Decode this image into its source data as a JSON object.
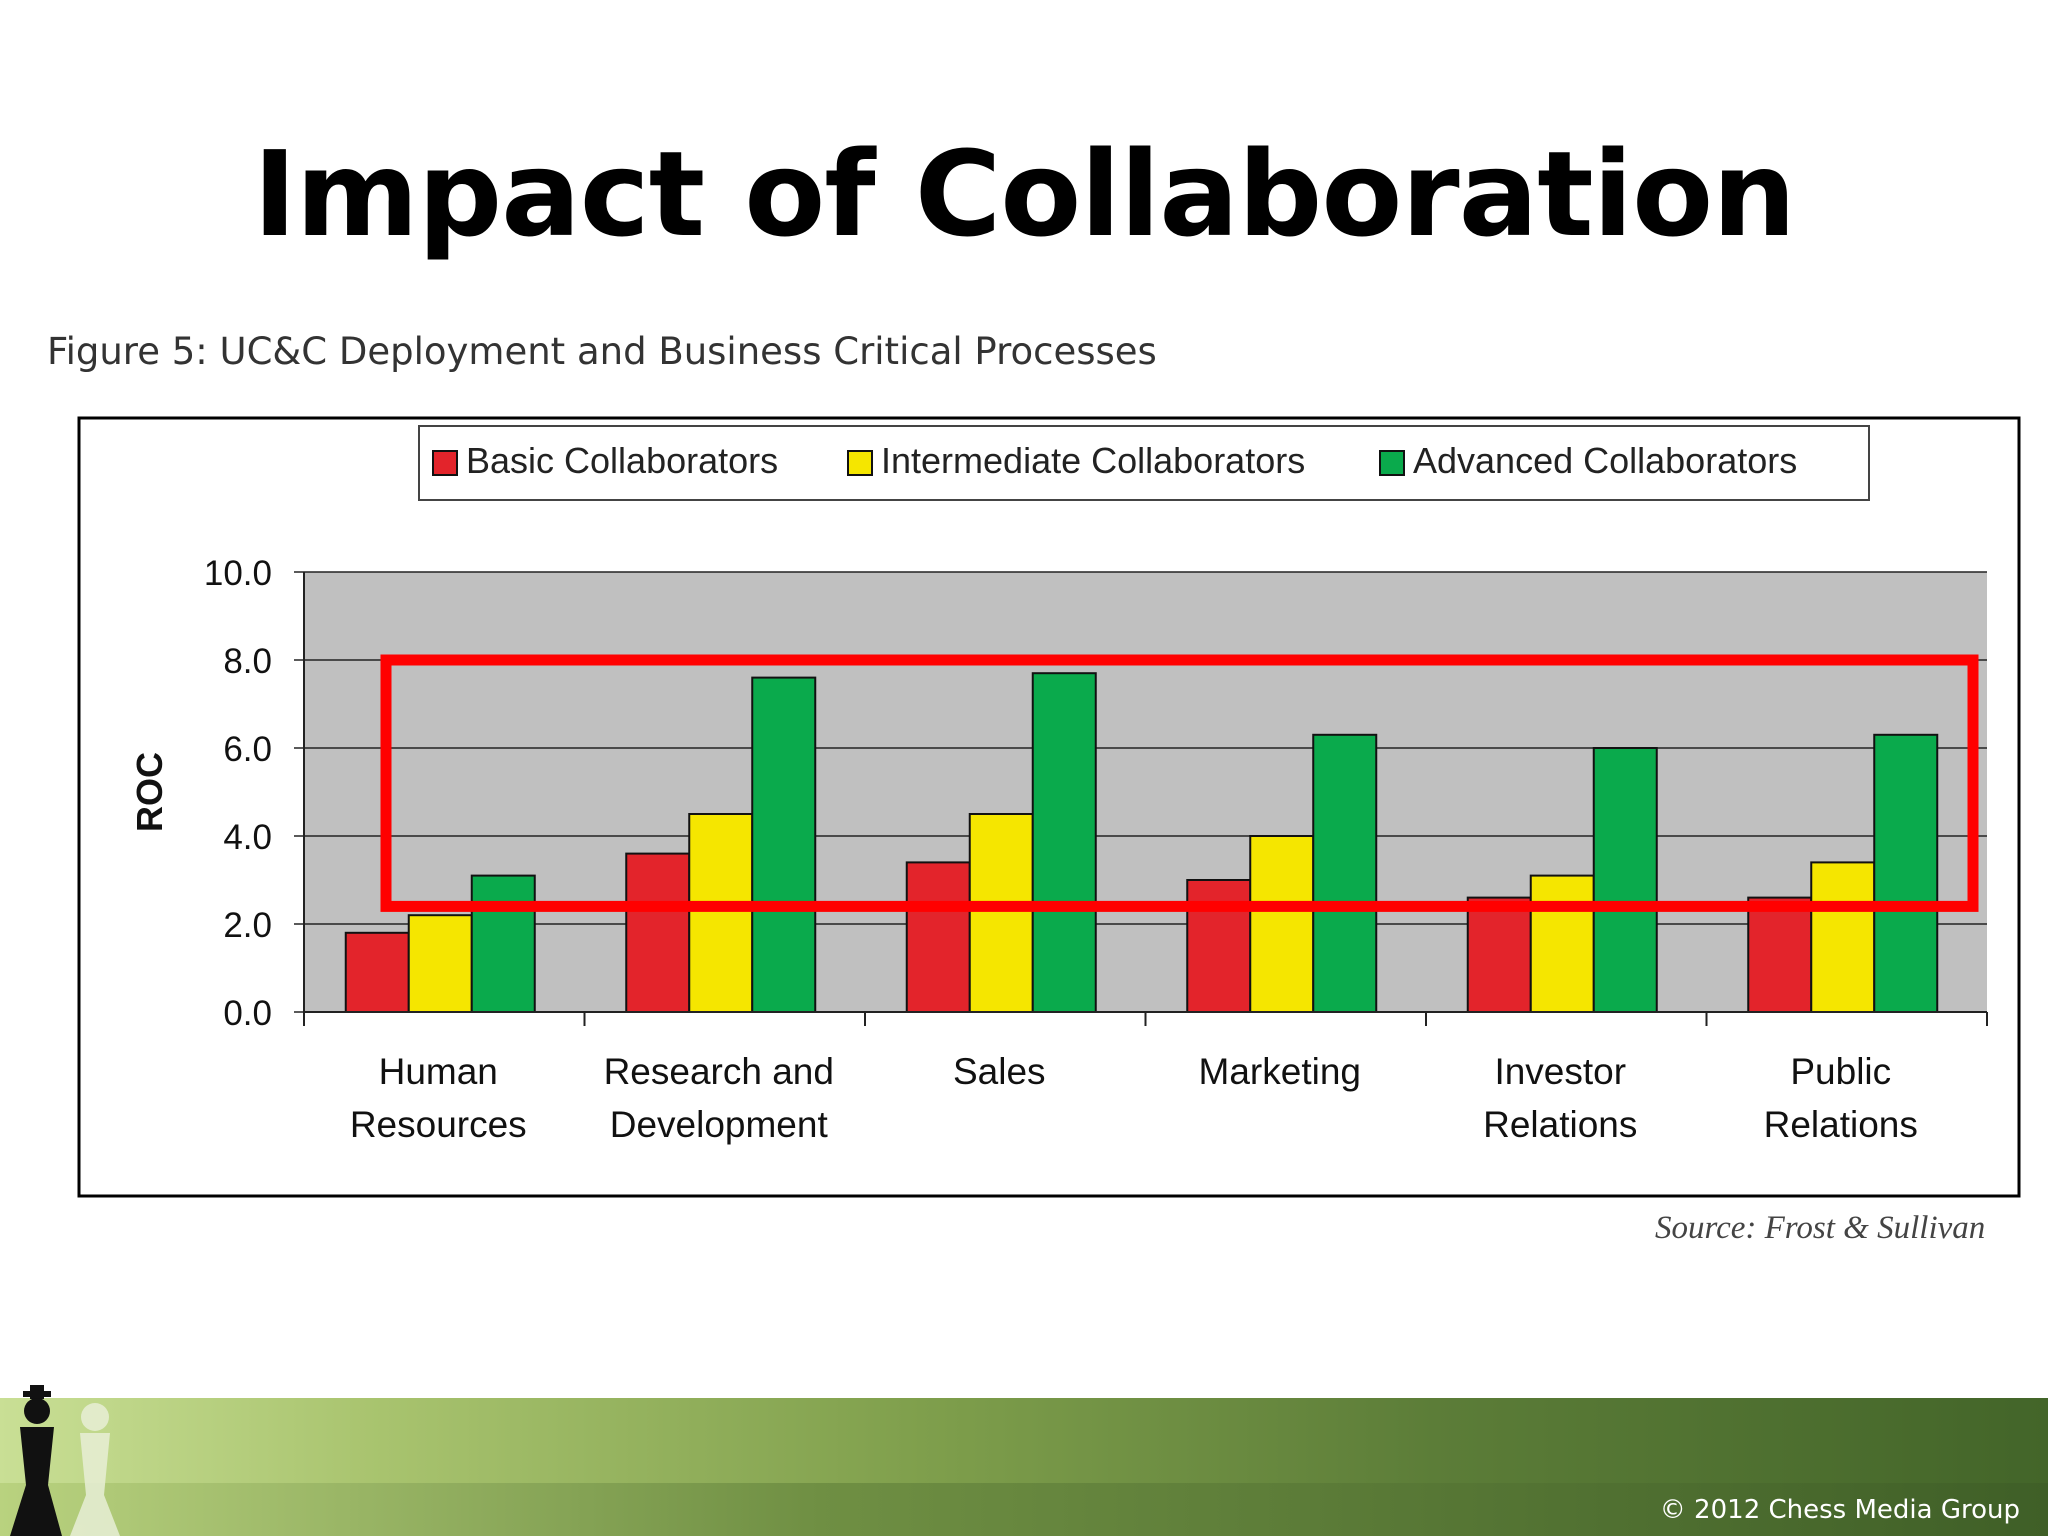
{
  "slide": {
    "title": "Impact of Collaboration",
    "figure_caption": "Figure 5: UC&C Deployment and Business Critical Processes",
    "source": "Source:  Frost & Sullivan",
    "copyright": "© 2012 Chess Media Group"
  },
  "colors": {
    "basic": "#e3242b",
    "intermediate": "#f5e600",
    "advanced": "#0aaa4c",
    "plot_bg": "#c0c0c0",
    "highlight": "#ff0000"
  },
  "chart_data": {
    "type": "bar",
    "categories": [
      [
        "Human",
        "Resources"
      ],
      [
        "Research and",
        "Development"
      ],
      [
        "Sales"
      ],
      [
        "Marketing"
      ],
      [
        "Investor",
        "Relations"
      ],
      [
        "Public",
        "Relations"
      ]
    ],
    "series": [
      {
        "name": "Basic Collaborators",
        "values": [
          1.8,
          3.6,
          3.4,
          3.0,
          2.6,
          2.6
        ]
      },
      {
        "name": "Intermediate Collaborators",
        "values": [
          2.2,
          4.5,
          4.5,
          4.0,
          3.1,
          3.4
        ]
      },
      {
        "name": "Advanced Collaborators",
        "values": [
          3.1,
          7.6,
          7.7,
          6.3,
          6.0,
          6.3
        ]
      }
    ],
    "ylabel": "ROC",
    "ylim": [
      0,
      10
    ],
    "yticks": [
      "0.0",
      "2.0",
      "4.0",
      "6.0",
      "8.0",
      "10.0"
    ],
    "grid": true,
    "legend": "top",
    "highlight_range": [
      2.4,
      8.0
    ]
  }
}
